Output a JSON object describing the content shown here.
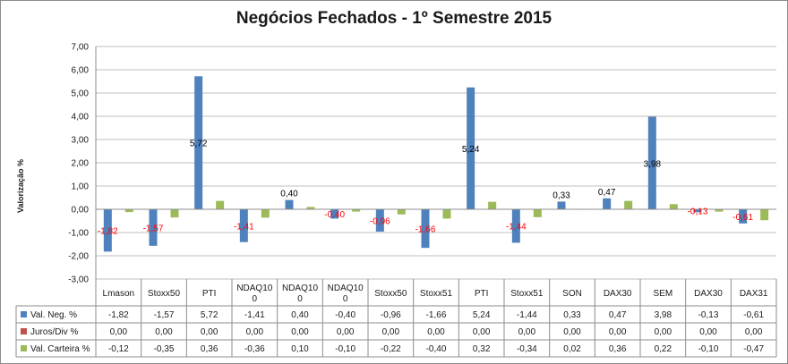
{
  "chart_data": {
    "type": "bar",
    "title": "Negócios Fechados - 1º Semestre 2015",
    "ylabel": "Valorização %",
    "ylim": [
      -3,
      7
    ],
    "yticks": [
      "7,00",
      "6,00",
      "5,00",
      "4,00",
      "3,00",
      "2,00",
      "1,00",
      "0,00",
      "-1,00",
      "-2,00",
      "-3,00"
    ],
    "categories": [
      [
        "Lmason"
      ],
      [
        "Stoxx50"
      ],
      [
        "PTI"
      ],
      [
        "NDAQ10",
        "0"
      ],
      [
        "NDAQ10",
        "0"
      ],
      [
        "NDAQ10",
        "0"
      ],
      [
        "Stoxx50"
      ],
      [
        "Stoxx51"
      ],
      [
        "PTI"
      ],
      [
        "Stoxx51"
      ],
      [
        "SON"
      ],
      [
        "DAX30"
      ],
      [
        "SEM"
      ],
      [
        "DAX30"
      ],
      [
        "DAX31"
      ]
    ],
    "series": [
      {
        "name": "Val. Neg. %",
        "color": "#4f81bd",
        "values": [
          -1.82,
          -1.57,
          5.72,
          -1.41,
          0.4,
          -0.4,
          -0.96,
          -1.66,
          5.24,
          -1.44,
          0.33,
          0.47,
          3.98,
          -0.13,
          -0.61
        ],
        "labels": [
          "-1,82",
          "-1,57",
          "5,72",
          "-1,41",
          "0,40",
          "-0,40",
          "-0,96",
          "-1,66",
          "5,24",
          "-1,44",
          "0,33",
          "0,47",
          "3,98",
          "-0,13",
          "-0,61"
        ]
      },
      {
        "name": "Juros/Div %",
        "color": "#c0504d",
        "values": [
          0,
          0,
          0,
          0,
          0,
          0,
          0,
          0,
          0,
          0,
          0,
          0,
          0,
          0,
          0
        ],
        "labels": [
          "0,00",
          "0,00",
          "0,00",
          "0,00",
          "0,00",
          "0,00",
          "0,00",
          "0,00",
          "0,00",
          "0,00",
          "0,00",
          "0,00",
          "0,00",
          "0,00",
          "0,00"
        ]
      },
      {
        "name": "Val. Carteira %",
        "color": "#9bbb59",
        "values": [
          -0.12,
          -0.35,
          0.36,
          -0.36,
          0.1,
          -0.1,
          -0.22,
          -0.4,
          0.32,
          -0.34,
          0.02,
          0.36,
          0.22,
          -0.1,
          -0.47
        ],
        "labels": [
          "-0,12",
          "-0,35",
          "0,36",
          "-0,36",
          "0,10",
          "-0,10",
          "-0,22",
          "-0,40",
          "0,32",
          "-0,34",
          "0,02",
          "0,36",
          "0,22",
          "-0,10",
          "-0,47"
        ]
      }
    ],
    "label_colors": {
      "positive": "#000000",
      "negative": "#ff0000"
    }
  }
}
